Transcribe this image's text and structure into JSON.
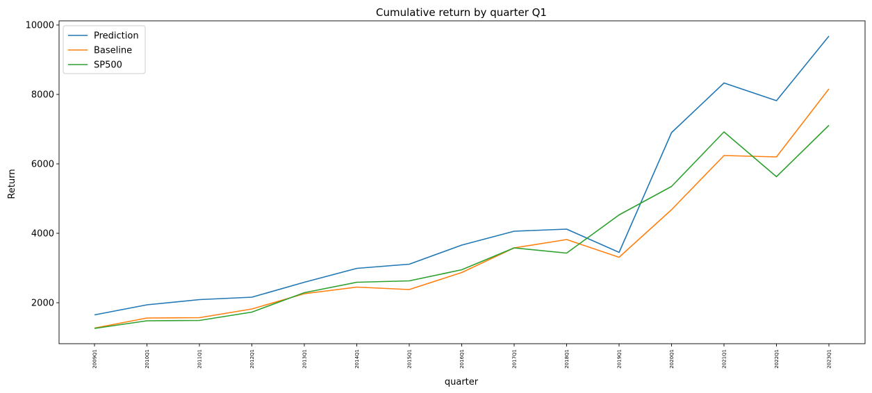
{
  "chart_data": {
    "type": "line",
    "title": "Cumulative return by quarter Q1",
    "xlabel": "quarter",
    "ylabel": "Return",
    "categories": [
      "2009Q1",
      "2010Q1",
      "2011Q1",
      "2012Q1",
      "2013Q1",
      "2014Q1",
      "2015Q1",
      "2016Q1",
      "2017Q1",
      "2018Q1",
      "2019Q1",
      "2020Q1",
      "2021Q1",
      "2022Q1",
      "2023Q1"
    ],
    "ylim": [
      850,
      10000
    ],
    "yticks": [
      2000,
      4000,
      6000,
      8000,
      10000
    ],
    "grid": false,
    "legend_position": "top-left",
    "series": [
      {
        "name": "Prediction",
        "color": "#1f77b4",
        "values": [
          1650,
          1940,
          2090,
          2160,
          2590,
          2990,
          3110,
          3660,
          4060,
          4120,
          3450,
          6900,
          8330,
          7820,
          9680
        ]
      },
      {
        "name": "Baseline",
        "color": "#ff7f0e",
        "values": [
          1270,
          1560,
          1570,
          1820,
          2260,
          2450,
          2380,
          2870,
          3580,
          3820,
          3310,
          4680,
          6240,
          6200,
          8160
        ]
      },
      {
        "name": "SP500",
        "color": "#2ca02c",
        "values": [
          1260,
          1480,
          1490,
          1730,
          2290,
          2590,
          2630,
          2950,
          3580,
          3430,
          4530,
          5350,
          6920,
          5630,
          7110
        ]
      }
    ]
  }
}
